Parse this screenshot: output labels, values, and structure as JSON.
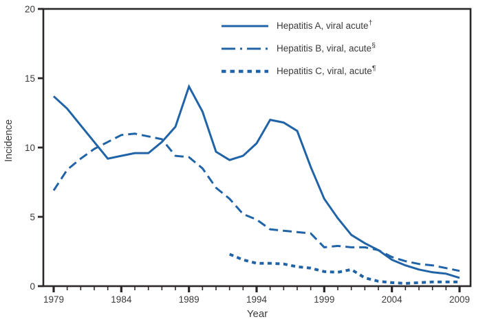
{
  "figure": {
    "background": "#ffffff",
    "axis_color": "#2b2728",
    "text_color": "#3a3a3c",
    "line_color": "#2063A7"
  },
  "chart_data": {
    "type": "line",
    "title": "",
    "xlabel": "Year",
    "ylabel": "Incidence",
    "xlim": [
      1979,
      2009
    ],
    "ylim": [
      0,
      20
    ],
    "yticks": [
      0,
      5,
      10,
      15,
      20
    ],
    "xtick_interval": 1,
    "xtick_labels": [
      1979,
      1984,
      1989,
      1994,
      1999,
      2004,
      2009
    ],
    "grid": false,
    "legend_position": "top-center-inside",
    "series": [
      {
        "id": "hepatitis-a",
        "name": "Hepatitis A, viral acute",
        "sup": "†",
        "line_style": "solid",
        "x_start": 1979,
        "values": [
          13.7,
          12.8,
          11.6,
          10.4,
          9.2,
          9.4,
          9.6,
          9.6,
          10.4,
          11.5,
          14.4,
          12.6,
          9.7,
          9.1,
          9.4,
          10.3,
          12.0,
          11.8,
          11.2,
          8.6,
          6.3,
          4.9,
          3.7,
          3.1,
          2.6,
          1.9,
          1.5,
          1.2,
          1.0,
          0.9,
          0.6
        ]
      },
      {
        "id": "hepatitis-b",
        "name": "Hepatitis B, viral, acute",
        "sup": "§",
        "line_style": "long-dash",
        "x_start": 1979,
        "values": [
          6.9,
          8.4,
          9.2,
          9.9,
          10.4,
          10.9,
          11.0,
          10.8,
          10.6,
          9.4,
          9.3,
          8.5,
          7.1,
          6.3,
          5.2,
          4.8,
          4.1,
          4.0,
          3.9,
          3.8,
          2.8,
          2.9,
          2.8,
          2.8,
          2.6,
          2.1,
          1.8,
          1.6,
          1.5,
          1.3,
          1.1
        ]
      },
      {
        "id": "hepatitis-c",
        "name": "Hepatitis C, viral, acute",
        "sup": "¶",
        "line_style": "square-dot",
        "x_start": 1992,
        "values": [
          2.3,
          1.9,
          1.65,
          1.65,
          1.6,
          1.4,
          1.3,
          1.05,
          1.0,
          1.2,
          0.6,
          0.35,
          0.25,
          0.2,
          0.25,
          0.3,
          0.3,
          0.3
        ]
      }
    ]
  }
}
